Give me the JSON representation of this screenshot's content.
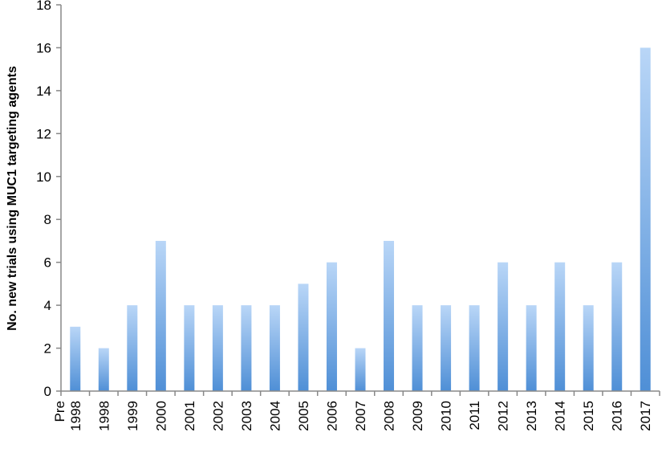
{
  "chart_data": {
    "type": "bar",
    "title": "",
    "xlabel": "",
    "ylabel": "No. new trials using MUC1 targeting agents",
    "ylim": [
      0,
      18
    ],
    "yticks": [
      0,
      2,
      4,
      6,
      8,
      10,
      12,
      14,
      16,
      18
    ],
    "grid": false,
    "categories": [
      "Pre 1998",
      "1998",
      "1999",
      "2000",
      "2001",
      "2002",
      "2003",
      "2004",
      "2005",
      "2006",
      "2007",
      "2008",
      "2009",
      "2010",
      "2011",
      "2012",
      "2013",
      "2014",
      "2015",
      "2016",
      "2017"
    ],
    "values": [
      3,
      2,
      4,
      7,
      4,
      4,
      4,
      4,
      5,
      6,
      2,
      7,
      4,
      4,
      4,
      6,
      4,
      6,
      4,
      6,
      16
    ],
    "colors": {
      "bar_top": "#b9d6f7",
      "bar_bottom": "#4f8fd6",
      "axis": "#888888"
    }
  }
}
